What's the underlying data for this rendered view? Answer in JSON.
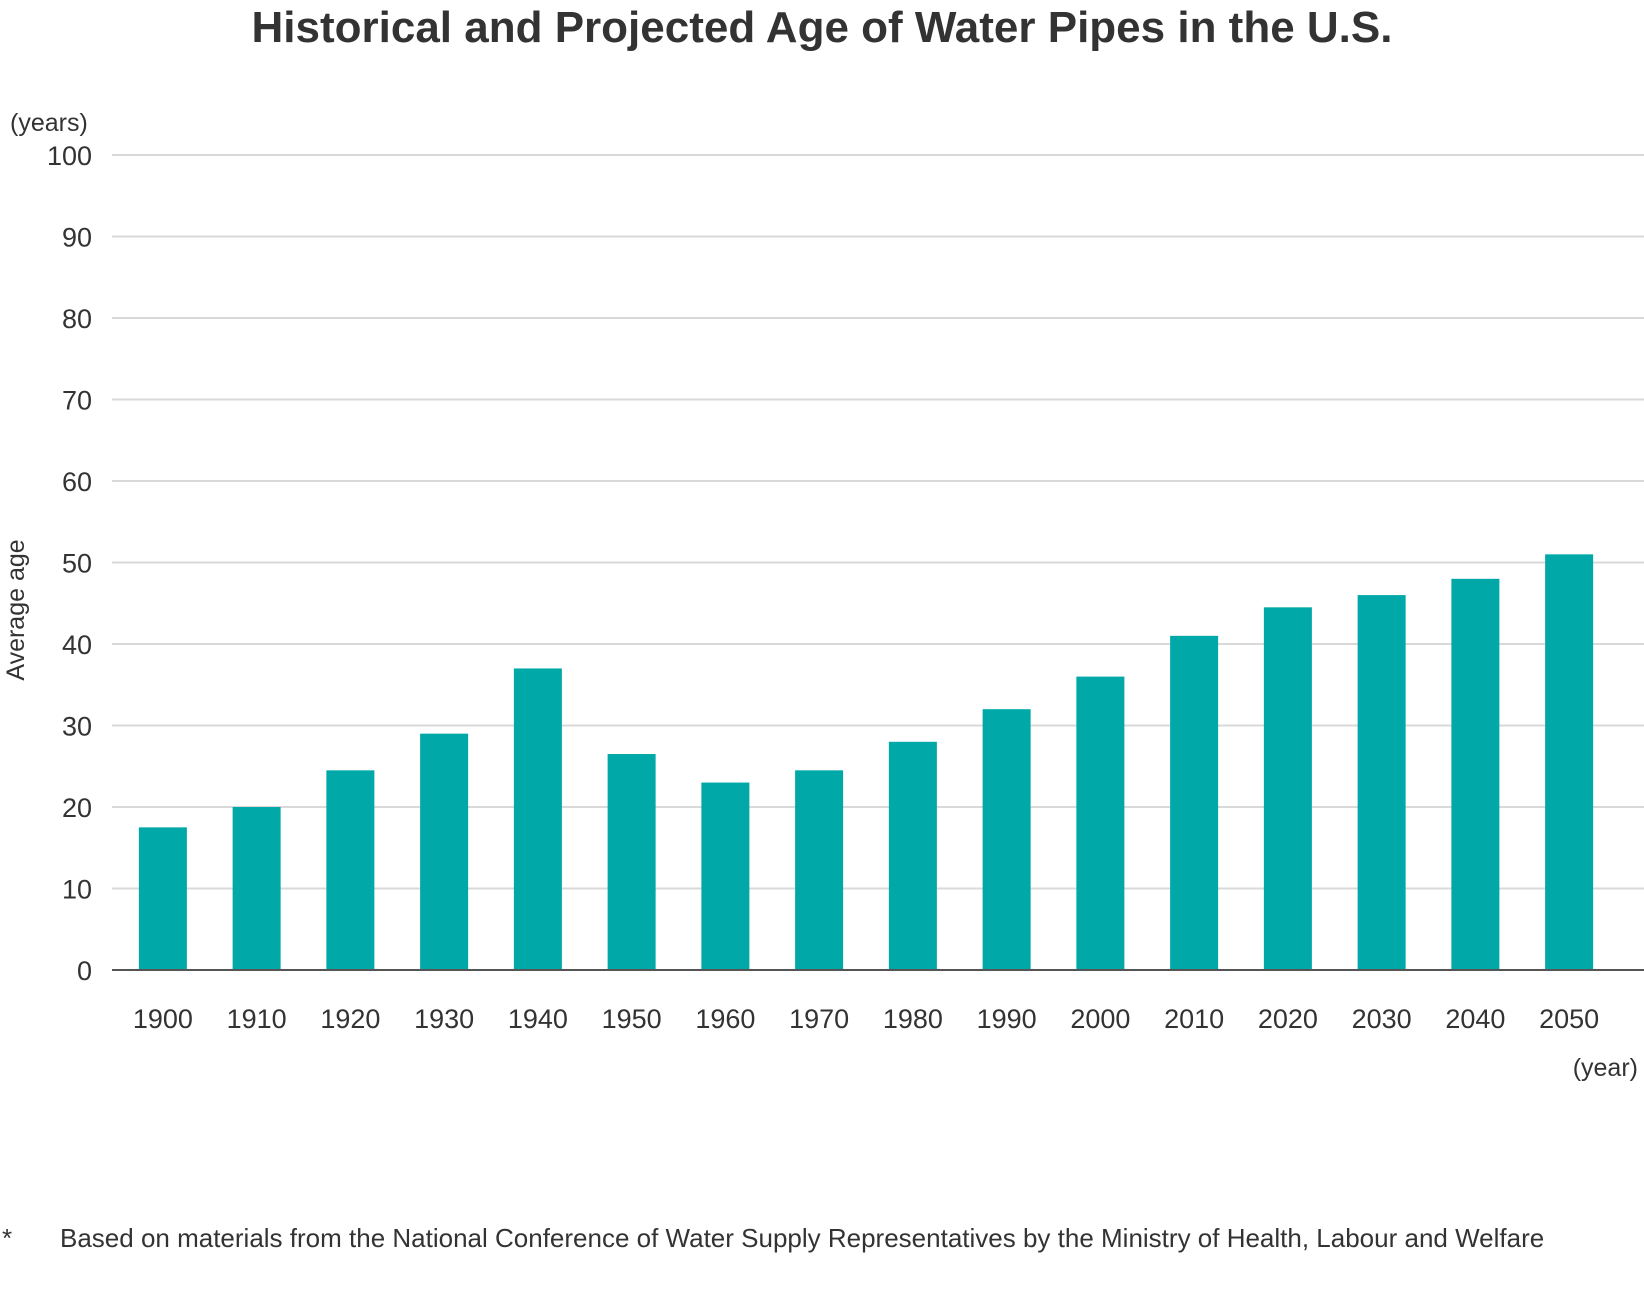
{
  "colors": {
    "bar": "#00a8a8",
    "grid": "#d9d9d9",
    "axis": "#555555",
    "text": "#333333"
  },
  "chart_data": {
    "type": "bar",
    "title": "Historical and Projected Age of Water Pipes in the U.S.",
    "ylabel": "Average age",
    "y_unit": "(years)",
    "x_unit": "(year)",
    "ylim": [
      0,
      100
    ],
    "yticks": [
      0,
      10,
      20,
      30,
      40,
      50,
      60,
      70,
      80,
      90,
      100
    ],
    "grid": true,
    "categories": [
      "1900",
      "1910",
      "1920",
      "1930",
      "1940",
      "1950",
      "1960",
      "1970",
      "1980",
      "1990",
      "2000",
      "2010",
      "2020",
      "2030",
      "2040",
      "2050"
    ],
    "values": [
      17.5,
      20,
      24.5,
      29,
      37,
      26.5,
      23,
      24.5,
      28,
      32,
      36,
      41,
      44.5,
      46,
      48,
      51
    ]
  },
  "footnote": {
    "mark": "*",
    "text": "Based on materials from the National Conference of Water Supply Representatives by the Ministry of Health, Labour and Welfare"
  }
}
